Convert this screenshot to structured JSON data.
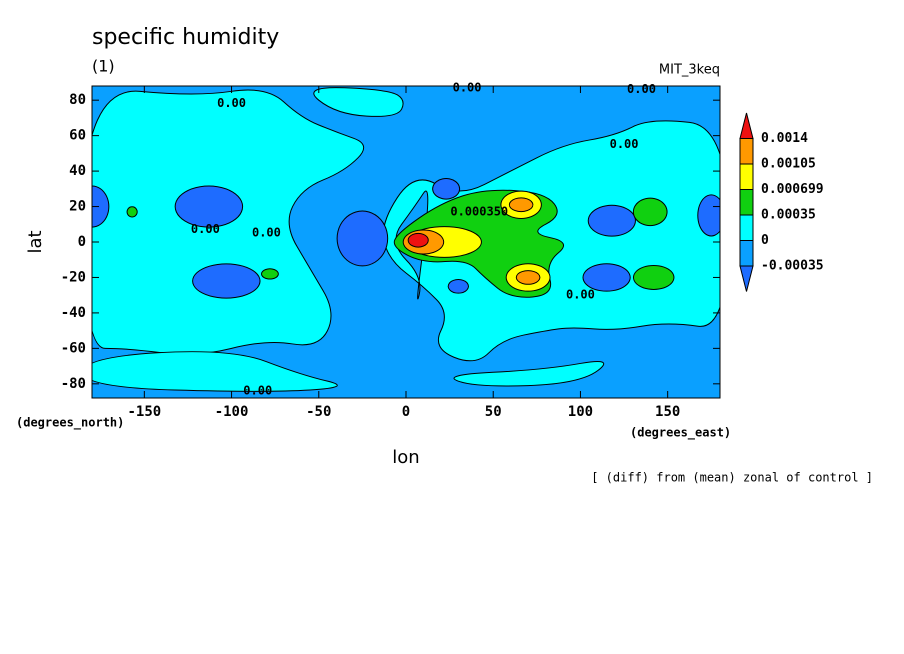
{
  "chart_data": {
    "type": "contour",
    "title": "specific humidity",
    "subtitle": "(1)",
    "run_label": "MIT_3keq",
    "xlabel": "lon",
    "ylabel": "lat",
    "x_units": "(degrees_east)",
    "y_units": "(degrees_north)",
    "footnote": "[ (diff) from (mean) zonal of control ]",
    "xlim": [
      -180,
      180
    ],
    "ylim": [
      -88,
      88
    ],
    "xticks": [
      -150,
      -100,
      -50,
      0,
      50,
      100,
      150
    ],
    "yticks": [
      -80,
      -60,
      -40,
      -20,
      0,
      20,
      40,
      60,
      80
    ],
    "contour_labels": [
      "0.00",
      "0.00",
      "0.00",
      "0.00",
      "0.00",
      "0.00",
      "0.000350",
      "0.00",
      "0.00"
    ],
    "colorbar": {
      "levels": [
        -0.00035,
        0,
        0.00035,
        0.000699,
        0.00105,
        0.0014
      ],
      "colors": [
        "#1e6cff",
        "#0aa0ff",
        "#00ffff",
        "#10d010",
        "#ffff00",
        "#ff9900",
        "#ee1111"
      ]
    }
  }
}
